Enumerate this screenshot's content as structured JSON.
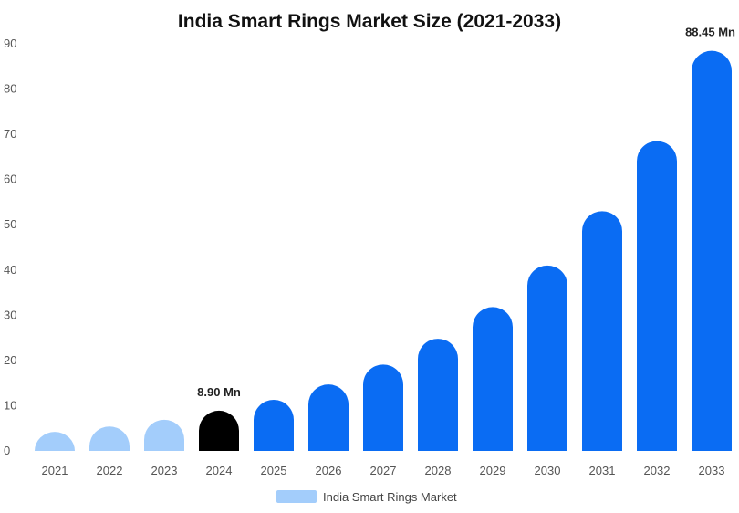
{
  "chart_data": {
    "type": "bar",
    "title": "India Smart Rings Market Size (2021-2033)",
    "categories": [
      "2021",
      "2022",
      "2023",
      "2024",
      "2025",
      "2026",
      "2027",
      "2028",
      "2029",
      "2030",
      "2031",
      "2032",
      "2033"
    ],
    "series": [
      {
        "name": "India Smart Rings Market",
        "values": [
          4.2,
          5.4,
          6.9,
          8.9,
          11.3,
          14.7,
          19.1,
          24.8,
          31.8,
          41.0,
          53.0,
          68.5,
          88.45
        ]
      }
    ],
    "bar_colors": [
      "#a3cdfb",
      "#a3cdfb",
      "#a3cdfb",
      "#000000",
      "#0a6cf3",
      "#0a6cf3",
      "#0a6cf3",
      "#0a6cf3",
      "#0a6cf3",
      "#0a6cf3",
      "#0a6cf3",
      "#0a6cf3",
      "#0a6cf3"
    ],
    "data_labels": [
      {
        "index": 3,
        "text": "8.90 Mn"
      },
      {
        "index": 12,
        "text": "88.45 Mn"
      }
    ],
    "yticks": [
      "0",
      "10",
      "20",
      "30",
      "40",
      "50",
      "60",
      "70",
      "80",
      "90"
    ],
    "ylim": [
      0,
      90
    ],
    "grid": false,
    "legend": {
      "position": "bottom",
      "label": "India Smart Rings Market",
      "color": "#a3cdfb"
    }
  }
}
